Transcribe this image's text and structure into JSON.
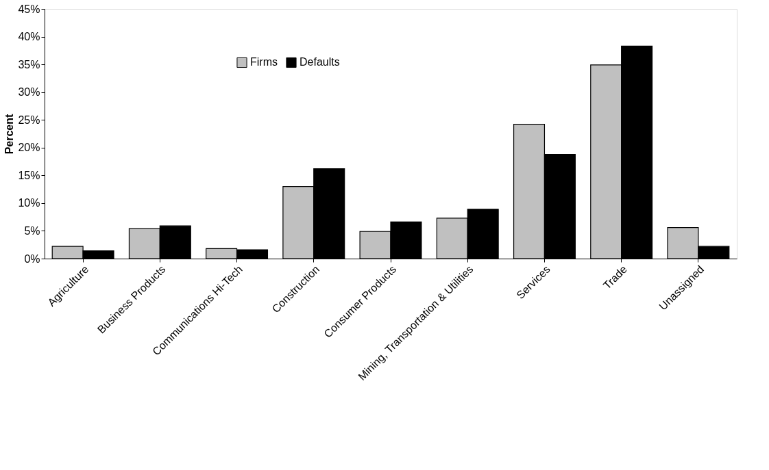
{
  "chart_data": {
    "type": "bar",
    "ylabel": "Percent",
    "categories": [
      "Agriculture",
      "Business Products",
      "Communications Hi-Tech",
      "Construction",
      "Consumer Products",
      "Mining, Transportation & Utilities",
      "Services",
      "Trade",
      "Unassigned"
    ],
    "series": [
      {
        "name": "Firms",
        "color": "#c0c0c0",
        "values": [
          2.2,
          5.4,
          1.8,
          13.0,
          4.9,
          7.3,
          24.2,
          34.9,
          5.6
        ]
      },
      {
        "name": "Defaults",
        "color": "#000000",
        "values": [
          1.4,
          5.9,
          1.6,
          16.2,
          6.6,
          8.9,
          18.8,
          38.3,
          2.2
        ]
      }
    ],
    "ylim": [
      0,
      45
    ],
    "yticks": [
      {
        "value": 0,
        "label": "0%"
      },
      {
        "value": 5,
        "label": "5%"
      },
      {
        "value": 10,
        "label": "10%"
      },
      {
        "value": 15,
        "label": "15%"
      },
      {
        "value": 20,
        "label": "20%"
      },
      {
        "value": 25,
        "label": "25%"
      },
      {
        "value": 30,
        "label": "30%"
      },
      {
        "value": 35,
        "label": "35%"
      },
      {
        "value": 40,
        "label": "40%"
      },
      {
        "value": 45,
        "label": "45%"
      }
    ],
    "grid": false,
    "legend": "top left"
  }
}
